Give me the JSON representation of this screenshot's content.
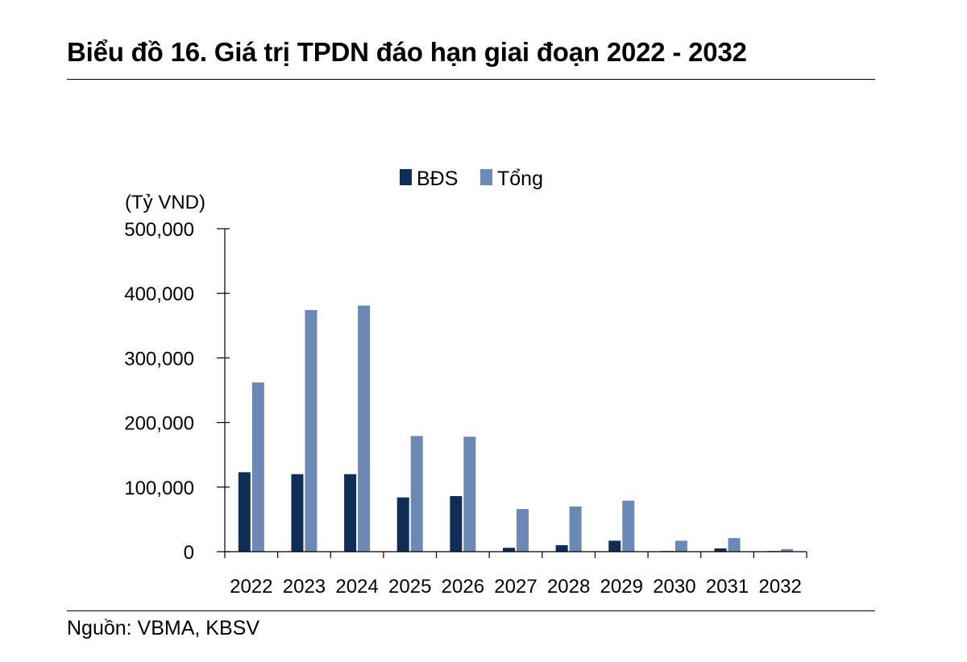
{
  "header": {
    "title": "Biểu đồ 16.  Giá trị TPDN đáo hạn giai đoạn 2022 - 2032"
  },
  "footer": {
    "source": "Nguồn: VBMA, KBSV"
  },
  "colors": {
    "bds": "#0f2d55",
    "total": "#6c88b4"
  },
  "chart_data": {
    "type": "bar",
    "unit_label": "(Tỷ VND)",
    "categories": [
      "2022",
      "2023",
      "2024",
      "2025",
      "2026",
      "2027",
      "2028",
      "2029",
      "2030",
      "2031",
      "2032"
    ],
    "series": [
      {
        "name": "BĐS",
        "values": [
          123000,
          120000,
          120000,
          84000,
          86000,
          6000,
          10000,
          17000,
          1000,
          5000,
          1000
        ]
      },
      {
        "name": "Tổng",
        "values": [
          262000,
          374000,
          381000,
          179000,
          178000,
          66000,
          70000,
          79000,
          17000,
          21000,
          4000
        ]
      }
    ],
    "ylim": [
      0,
      500000
    ],
    "yticks": [
      "0",
      "100,000",
      "200,000",
      "300,000",
      "400,000",
      "500,000"
    ],
    "legend_position": "top-center",
    "grid": false
  }
}
